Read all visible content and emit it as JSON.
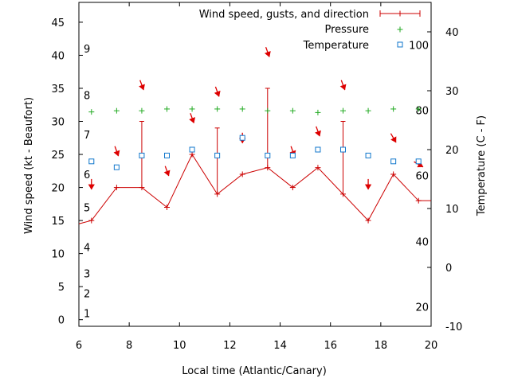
{
  "chart_data": {
    "type": "line",
    "xlabel": "Local time (Atlantic/Canary)",
    "ylabel": "Wind speed (kt - Beaufort)",
    "y2label": "Temperature (C - F)",
    "xlim": [
      6,
      20
    ],
    "ylim": [
      -1,
      48
    ],
    "y2lim": [
      -10,
      45
    ],
    "xticks": [
      "6",
      "8",
      "10",
      "12",
      "14",
      "16",
      "18",
      "20"
    ],
    "yticks": [
      "0",
      "5",
      "10",
      "15",
      "20",
      "25",
      "30",
      "35",
      "40",
      "45"
    ],
    "y2ticks": [
      "-10",
      "0",
      "10",
      "20",
      "30",
      "40"
    ],
    "beaufort_labels": [
      {
        "text": "1",
        "y": 1
      },
      {
        "text": "2",
        "y": 4
      },
      {
        "text": "3",
        "y": 7
      },
      {
        "text": "4",
        "y": 11
      },
      {
        "text": "5",
        "y": 17
      },
      {
        "text": "6",
        "y": 22
      },
      {
        "text": "7",
        "y": 28
      },
      {
        "text": "8",
        "y": 34
      },
      {
        "text": "9",
        "y": 41
      }
    ],
    "fahrenheit_labels": [
      {
        "text": "20",
        "y": -6.7
      },
      {
        "text": "40",
        "y": 4.4
      },
      {
        "text": "60",
        "y": 15.6
      },
      {
        "text": "80",
        "y": 26.7
      },
      {
        "text": "100",
        "y": 37.8
      }
    ],
    "legend": {
      "position": "top-right",
      "entries": [
        {
          "label": "Wind speed, gusts, and direction",
          "series": "wind"
        },
        {
          "label": "Pressure",
          "series": "pressure"
        },
        {
          "label": "Temperature",
          "series": "temperature"
        }
      ]
    },
    "colors": {
      "wind": "#cc0000",
      "pressure": "#22aa22",
      "temperature": "#1177cc",
      "arrow": "#dd0000"
    },
    "series": [
      {
        "name": "Wind speed, gusts, and direction",
        "axis": "y1",
        "points": [
          {
            "x": 6.0,
            "y": 14.5
          },
          {
            "x": 6.5,
            "y": 15,
            "gust": 15,
            "dir": 0
          },
          {
            "x": 7.5,
            "y": 20,
            "gust": 20,
            "dir": 340
          },
          {
            "x": 8.5,
            "y": 20,
            "gust": 30,
            "dir": 340
          },
          {
            "x": 9.5,
            "y": 17,
            "gust": 17,
            "dir": 340
          },
          {
            "x": 10.5,
            "y": 25,
            "gust": 25,
            "dir": 340
          },
          {
            "x": 11.5,
            "y": 19,
            "gust": 29,
            "dir": 340
          },
          {
            "x": 12.5,
            "y": 22,
            "gust": 22,
            "dir": 0
          },
          {
            "x": 13.5,
            "y": 23,
            "gust": 35,
            "dir": 340
          },
          {
            "x": 14.5,
            "y": 20,
            "gust": 20,
            "dir": 340
          },
          {
            "x": 15.5,
            "y": 23,
            "gust": 23,
            "dir": 340
          },
          {
            "x": 16.5,
            "y": 19,
            "gust": 30,
            "dir": 340
          },
          {
            "x": 17.5,
            "y": 15,
            "gust": 15,
            "dir": 0
          },
          {
            "x": 18.5,
            "y": 22,
            "gust": 22,
            "dir": 330
          },
          {
            "x": 19.5,
            "y": 18,
            "gust": 18,
            "dir": 300
          },
          {
            "x": 20.0,
            "y": 18
          }
        ]
      },
      {
        "name": "Pressure",
        "axis": "y2",
        "points": [
          {
            "x": 6.5,
            "y": 26.4
          },
          {
            "x": 7.5,
            "y": 26.6
          },
          {
            "x": 8.5,
            "y": 26.6
          },
          {
            "x": 9.5,
            "y": 26.9
          },
          {
            "x": 10.5,
            "y": 26.9
          },
          {
            "x": 11.5,
            "y": 26.9
          },
          {
            "x": 12.5,
            "y": 26.9
          },
          {
            "x": 13.5,
            "y": 26.6
          },
          {
            "x": 14.5,
            "y": 26.6
          },
          {
            "x": 15.5,
            "y": 26.3
          },
          {
            "x": 16.5,
            "y": 26.6
          },
          {
            "x": 17.5,
            "y": 26.6
          },
          {
            "x": 18.5,
            "y": 26.9
          },
          {
            "x": 19.5,
            "y": 26.9
          }
        ]
      },
      {
        "name": "Temperature",
        "axis": "y2",
        "points": [
          {
            "x": 6.5,
            "y": 18
          },
          {
            "x": 7.5,
            "y": 17
          },
          {
            "x": 8.5,
            "y": 19
          },
          {
            "x": 9.5,
            "y": 19
          },
          {
            "x": 10.5,
            "y": 20
          },
          {
            "x": 11.5,
            "y": 19
          },
          {
            "x": 12.5,
            "y": 22
          },
          {
            "x": 13.5,
            "y": 19
          },
          {
            "x": 14.5,
            "y": 19
          },
          {
            "x": 15.5,
            "y": 20
          },
          {
            "x": 16.5,
            "y": 20
          },
          {
            "x": 17.5,
            "y": 19
          },
          {
            "x": 18.5,
            "y": 18
          },
          {
            "x": 19.5,
            "y": 18
          }
        ]
      }
    ]
  }
}
